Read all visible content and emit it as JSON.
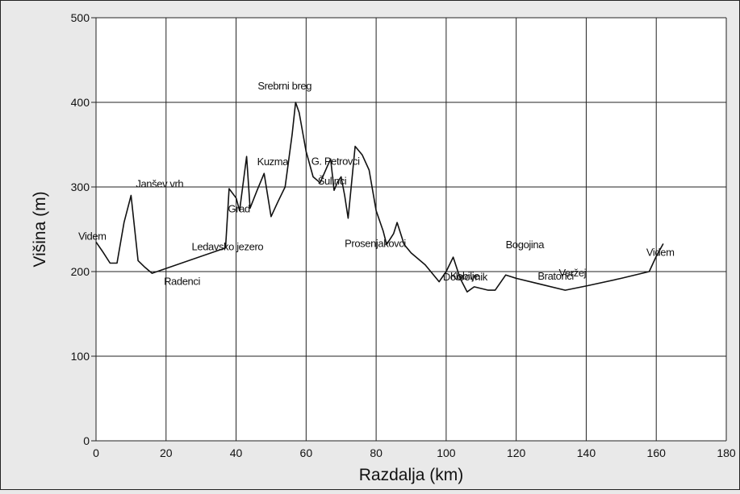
{
  "chart_data": {
    "type": "line",
    "title": "",
    "xlabel": "Razdalja (km)",
    "ylabel": "Višina (m)",
    "xlim": [
      0,
      180
    ],
    "ylim": [
      0,
      500
    ],
    "xticks": [
      0,
      20,
      40,
      60,
      80,
      100,
      120,
      140,
      160,
      180
    ],
    "yticks": [
      0,
      100,
      200,
      300,
      400,
      500
    ],
    "grid": true,
    "series": [
      {
        "x": [
          0,
          2,
          4,
          6,
          8,
          10,
          12,
          14,
          16,
          37,
          38,
          40,
          41,
          43,
          44,
          46,
          48,
          50,
          52,
          54,
          56,
          57,
          58,
          60,
          62,
          64,
          66,
          67,
          68,
          69,
          70,
          71,
          72,
          74,
          76,
          78,
          80,
          82,
          83,
          85,
          86,
          88,
          90,
          94,
          98,
          100,
          102,
          104,
          106,
          108,
          112,
          114,
          117,
          120,
          126,
          134,
          140,
          150,
          158,
          160,
          162
        ],
        "y": [
          235,
          223,
          210,
          210,
          258,
          290,
          213,
          205,
          198,
          228,
          298,
          287,
          272,
          336,
          275,
          296,
          316,
          265,
          283,
          300,
          362,
          400,
          388,
          342,
          312,
          305,
          324,
          333,
          296,
          306,
          312,
          290,
          263,
          348,
          338,
          320,
          272,
          248,
          232,
          245,
          258,
          232,
          222,
          208,
          188,
          200,
          217,
          192,
          176,
          182,
          178,
          178,
          196,
          192,
          186,
          178,
          183,
          192,
          200,
          218,
          233
        ]
      }
    ],
    "annotations": [
      {
        "text": "Videm",
        "x": 0,
        "y": 235
      },
      {
        "text": "Janšev vrh",
        "x": 10,
        "y": 290
      },
      {
        "text": "Radenci",
        "x": 12,
        "y": 213
      },
      {
        "text": "Ledavsko jezero",
        "x": 37,
        "y": 228
      },
      {
        "text": "Grad",
        "x": 40,
        "y": 287
      },
      {
        "text": "Kuzma",
        "x": 46,
        "y": 296
      },
      {
        "text": "Srebrni breg",
        "x": 57,
        "y": 400
      },
      {
        "text": "Šulinci",
        "x": 64,
        "y": 305
      },
      {
        "text": "G. Petrovci",
        "x": 67,
        "y": 333
      },
      {
        "text": "Prosenjakovci",
        "x": 83,
        "y": 232
      },
      {
        "text": "Kobilje",
        "x": 100,
        "y": 200
      },
      {
        "text": "Dobrovnik",
        "x": 106,
        "y": 176
      },
      {
        "text": "Bogojina",
        "x": 117,
        "y": 196
      },
      {
        "text": "Bratonci",
        "x": 134,
        "y": 178
      },
      {
        "text": "Veržej",
        "x": 140,
        "y": 183
      },
      {
        "text": "Videm",
        "x": 162,
        "y": 233
      }
    ]
  }
}
